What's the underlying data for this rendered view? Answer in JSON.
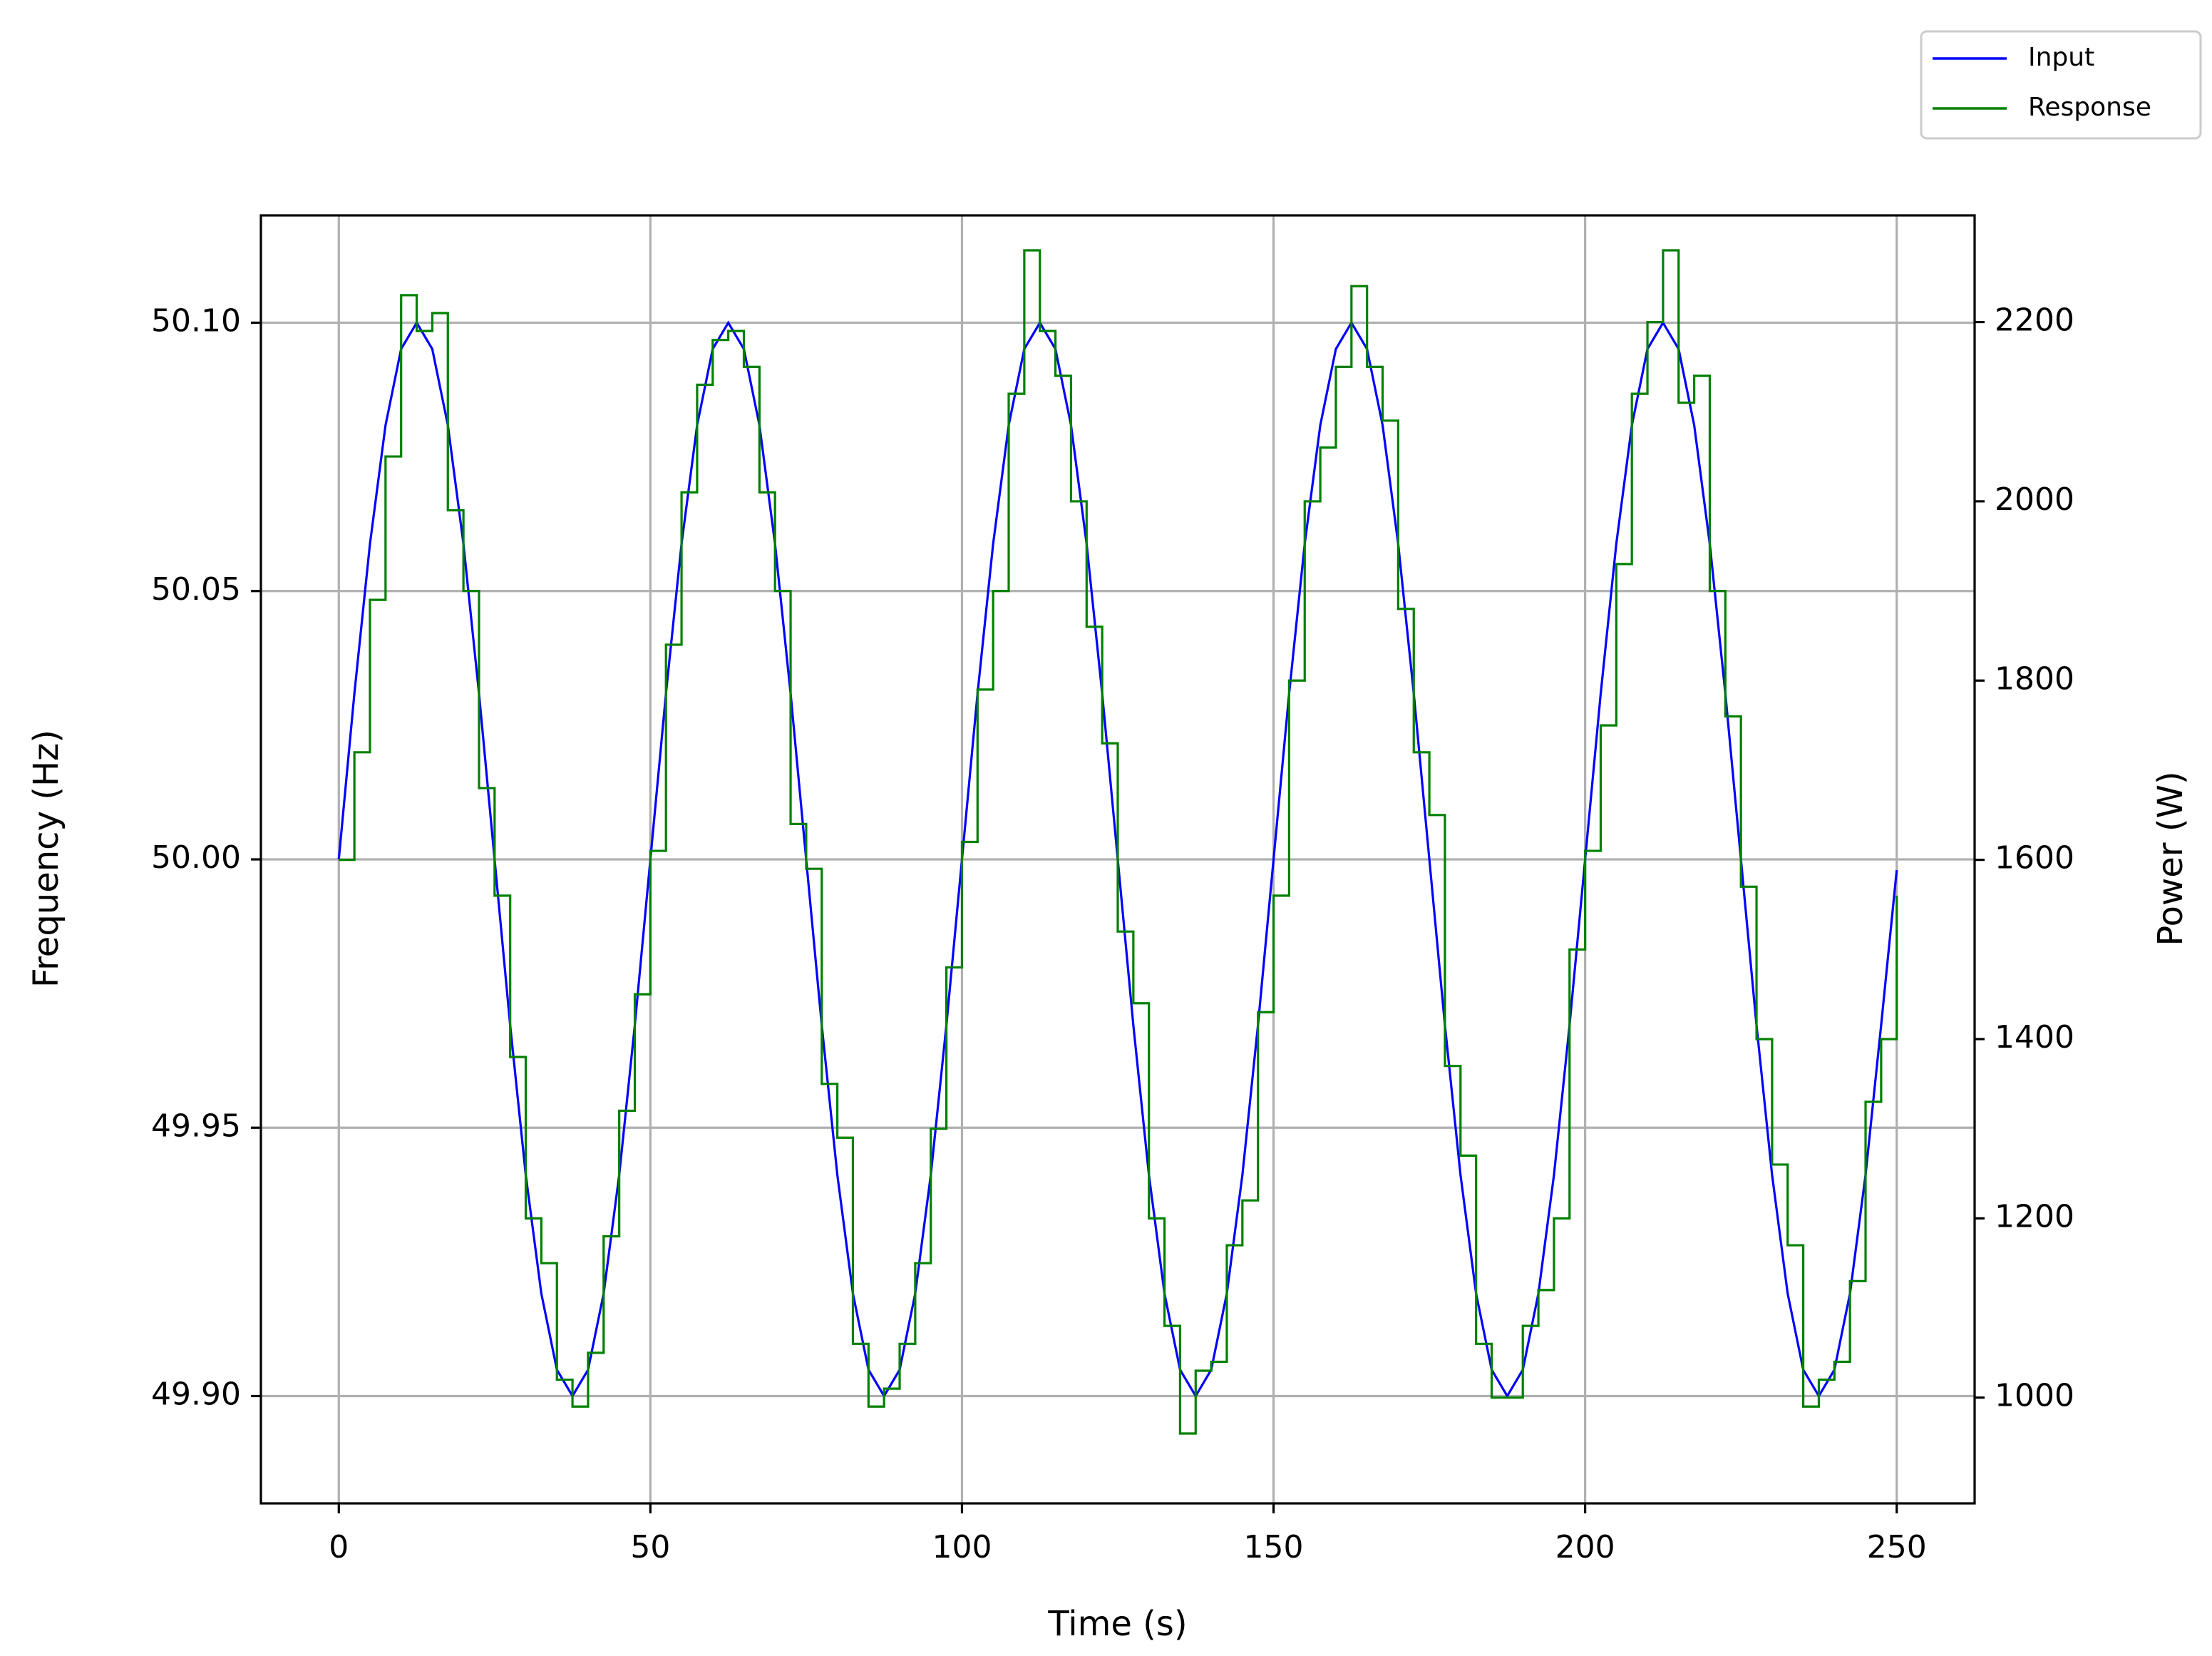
{
  "chart_data": {
    "type": "line",
    "xlabel": "Time (s)",
    "ylabel": "Frequency (Hz)",
    "y2label": "Power (W)",
    "x": [
      0,
      2.5,
      5,
      7.5,
      10,
      12.5,
      15,
      17.5,
      20,
      22.5,
      25,
      27.5,
      30,
      32.5,
      35,
      37.5,
      40,
      42.5,
      45,
      47.5,
      50,
      52.5,
      55,
      57.5,
      60,
      62.5,
      65,
      67.5,
      70,
      72.5,
      75,
      77.5,
      80,
      82.5,
      85,
      87.5,
      90,
      92.5,
      95,
      97.5,
      100,
      102.5,
      105,
      107.5,
      110,
      112.5,
      115,
      117.5,
      120,
      122.5,
      125,
      127.5,
      130,
      132.5,
      135,
      137.5,
      140,
      142.5,
      145,
      147.5,
      150,
      152.5,
      155,
      157.5,
      160,
      162.5,
      165,
      167.5,
      170,
      172.5,
      175,
      177.5,
      180,
      182.5,
      185,
      187.5,
      190,
      192.5,
      195,
      197.5,
      200,
      202.5,
      205,
      207.5,
      210,
      212.5,
      215,
      217.5,
      220,
      222.5,
      225,
      227.5,
      230,
      232.5,
      235,
      237.5,
      240,
      242.5,
      245,
      247.5,
      250
    ],
    "series": [
      {
        "name": "Input",
        "color": "#0000ff",
        "axis": "y",
        "values": [
          50,
          50.0309,
          50.0588,
          50.0809,
          50.0951,
          50.1,
          50.0951,
          50.0809,
          50.0588,
          50.0309,
          50,
          49.9691,
          49.9412,
          49.9191,
          49.9049,
          49.9,
          49.9049,
          49.9191,
          49.9412,
          49.9691,
          50,
          50.0309,
          50.0588,
          50.0809,
          50.0951,
          50.1,
          50.0951,
          50.0809,
          50.0588,
          50.0309,
          50,
          49.9691,
          49.9412,
          49.9191,
          49.9049,
          49.9,
          49.9049,
          49.9191,
          49.9412,
          49.9691,
          50,
          50.0309,
          50.0588,
          50.0809,
          50.0951,
          50.1,
          50.0951,
          50.0809,
          50.0588,
          50.0309,
          50,
          49.9691,
          49.9412,
          49.9191,
          49.9049,
          49.9,
          49.9049,
          49.9191,
          49.9412,
          49.9691,
          50,
          50.0309,
          50.0588,
          50.0809,
          50.0951,
          50.1,
          50.0951,
          50.0809,
          50.0588,
          50.0309,
          50,
          49.9691,
          49.9412,
          49.9191,
          49.9049,
          49.9,
          49.9049,
          49.9191,
          49.9412,
          49.9691,
          50,
          50.0309,
          50.0588,
          50.0809,
          50.0951,
          50.1,
          50.0951,
          50.0809,
          50.0588,
          50.0309,
          50,
          49.9691,
          49.9412,
          49.9191,
          49.9049,
          49.9,
          49.9049,
          49.9191,
          49.9412,
          49.9691,
          49.998
        ]
      },
      {
        "name": "Response",
        "color": "#008000",
        "axis": "y2",
        "drawstyle": "steps",
        "values": [
          1600,
          1720,
          1890,
          2050,
          2230,
          2190,
          2210,
          1990,
          1900,
          1680,
          1560,
          1380,
          1200,
          1150,
          1020,
          990,
          1050,
          1180,
          1320,
          1450,
          1610,
          1840,
          2010,
          2130,
          2180,
          2190,
          2150,
          2010,
          1900,
          1640,
          1590,
          1350,
          1290,
          1060,
          990,
          1010,
          1060,
          1150,
          1300,
          1480,
          1620,
          1790,
          1900,
          2120,
          2280,
          2190,
          2140,
          2000,
          1860,
          1730,
          1520,
          1440,
          1200,
          1080,
          960,
          1030,
          1040,
          1170,
          1220,
          1430,
          1560,
          1800,
          2000,
          2060,
          2150,
          2240,
          2150,
          2090,
          1880,
          1720,
          1650,
          1370,
          1270,
          1060,
          1000,
          1000,
          1080,
          1120,
          1200,
          1500,
          1610,
          1750,
          1930,
          2120,
          2200,
          2280,
          2110,
          2140,
          1900,
          1760,
          1570,
          1400,
          1260,
          1170,
          990,
          1020,
          1040,
          1130,
          1330,
          1400,
          1560
        ]
      }
    ],
    "xlim": [
      -12.5,
      262.5
    ],
    "xticks": [
      0,
      50,
      100,
      150,
      200,
      250
    ],
    "ylim": [
      49.88,
      50.12
    ],
    "yticks": [
      {
        "value": 49.9,
        "label": "49.90"
      },
      {
        "value": 49.95,
        "label": "49.95"
      },
      {
        "value": 50,
        "label": "50.00"
      },
      {
        "value": 50.05,
        "label": "50.05"
      },
      {
        "value": 50.1,
        "label": "50.10"
      }
    ],
    "y2lim": [
      882,
      2319
    ],
    "y2ticks": [
      1000,
      1200,
      1400,
      1600,
      1800,
      2000,
      2200
    ],
    "grid": true,
    "legend": "upper right"
  }
}
